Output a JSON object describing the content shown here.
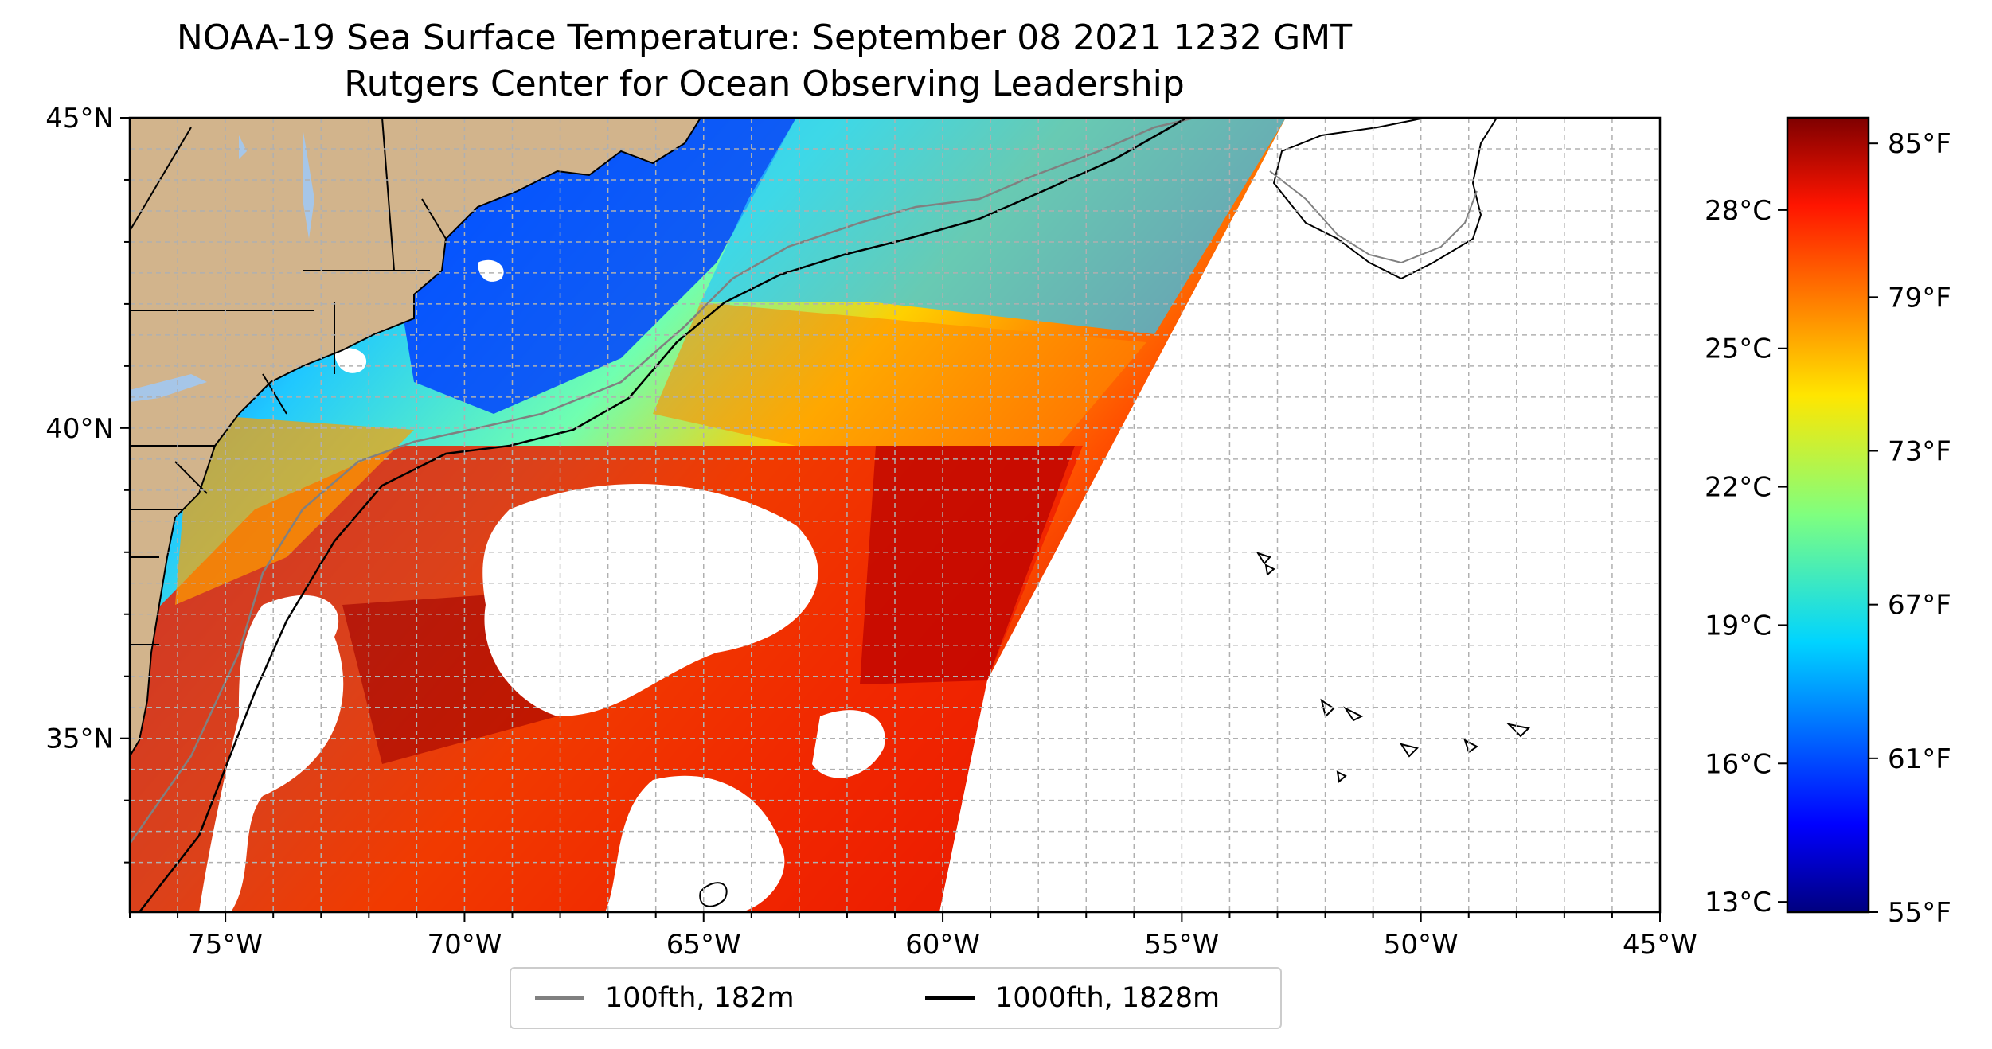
{
  "title": {
    "line1": "NOAA-19 Sea Surface Temperature: September 08 2021 1232 GMT",
    "line2": "Rutgers Center for Ocean Observing Leadership"
  },
  "map": {
    "lon_ticks": [
      "75°W",
      "70°W",
      "65°W",
      "60°W",
      "55°W",
      "50°W",
      "45°W"
    ],
    "lat_ticks": [
      "45°N",
      "40°N",
      "35°N"
    ],
    "lon_range": [
      -77,
      -45
    ],
    "lat_range": [
      32.2,
      45
    ],
    "grid": true,
    "land_color": "#d2b48c",
    "lake_color": "#a6c6e8",
    "no_data_color": "#ffffff"
  },
  "legend": {
    "items": [
      {
        "label": "100fth, 182m",
        "color": "#808080"
      },
      {
        "label": "1000fth, 1828m",
        "color": "#000000"
      }
    ],
    "placement": "bottom-center"
  },
  "colorbar": {
    "colormap": "jet",
    "celsius_ticks": [
      "28°C",
      "25°C",
      "22°C",
      "19°C",
      "16°C",
      "13°C"
    ],
    "fahrenheit_ticks": [
      "85°F",
      "79°F",
      "73°F",
      "67°F",
      "61°F",
      "55°F"
    ],
    "range_f": [
      55,
      86
    ]
  }
}
